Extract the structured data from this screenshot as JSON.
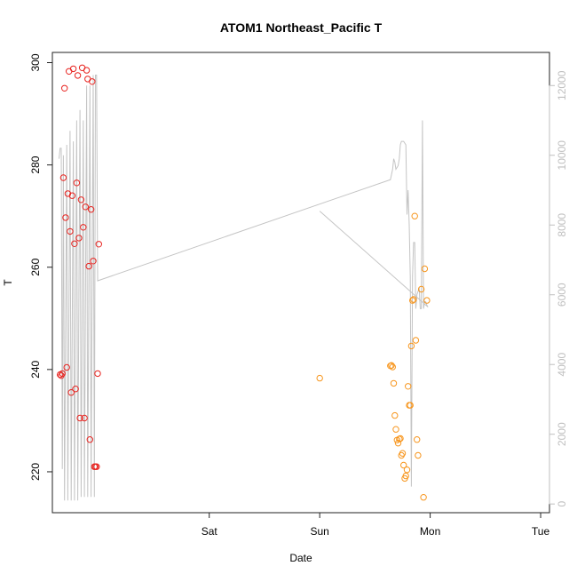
{
  "chart_data": {
    "type": "scatter",
    "title": "ATOM1 Northeast_Pacific T",
    "xlabel": "Date",
    "ylabel": "T",
    "x_ticks": [
      "Sat",
      "Sun",
      "Mon",
      "Tue"
    ],
    "y_ticks": [
      220,
      240,
      260,
      280,
      300
    ],
    "y2_ticks": [
      0,
      2000,
      4000,
      6000,
      8000,
      10000,
      12000
    ],
    "xlim_days": [
      -1.42,
      3.08
    ],
    "ylim": [
      212,
      302
    ],
    "y2lim": [
      -250,
      12950
    ],
    "colors": {
      "series_red": "#e8231f",
      "series_orange": "#f7961e",
      "line": "#c4c4c4",
      "axis2": "#bfbfbf",
      "axis": "#222222"
    },
    "series": [
      {
        "color": "red",
        "points": [
          [
            -1.35,
            239
          ],
          [
            -1.34,
            238.8
          ],
          [
            -1.33,
            239.2
          ],
          [
            -1.32,
            277.5
          ],
          [
            -1.31,
            295
          ],
          [
            -1.3,
            269.7
          ],
          [
            -1.29,
            240.4
          ],
          [
            -1.28,
            274.4
          ],
          [
            -1.27,
            298.3
          ],
          [
            -1.26,
            267
          ],
          [
            -1.25,
            235.5
          ],
          [
            -1.24,
            274
          ],
          [
            -1.23,
            298.8
          ],
          [
            -1.22,
            264.6
          ],
          [
            -1.21,
            236.2
          ],
          [
            -1.2,
            276.5
          ],
          [
            -1.19,
            297.5
          ],
          [
            -1.18,
            265.7
          ],
          [
            -1.17,
            230.5
          ],
          [
            -1.16,
            273.2
          ],
          [
            -1.15,
            299
          ],
          [
            -1.14,
            267.8
          ],
          [
            -1.13,
            230.5
          ],
          [
            -1.12,
            271.8
          ],
          [
            -1.11,
            298.5
          ],
          [
            -1.1,
            296.8
          ],
          [
            -1.09,
            260.2
          ],
          [
            -1.08,
            226.3
          ],
          [
            -1.07,
            271.3
          ],
          [
            -1.06,
            296.3
          ],
          [
            -1.05,
            261.2
          ],
          [
            -1.04,
            221
          ],
          [
            -1.03,
            221
          ],
          [
            -1.02,
            221
          ],
          [
            -1.01,
            239.2
          ],
          [
            -1.0,
            264.5
          ]
        ]
      },
      {
        "color": "orange",
        "points": [
          [
            1.0,
            238.3
          ],
          [
            1.64,
            240.7
          ],
          [
            1.65,
            240.8
          ],
          [
            1.66,
            240.5
          ],
          [
            1.67,
            237.3
          ],
          [
            1.68,
            231
          ],
          [
            1.69,
            228.3
          ],
          [
            1.7,
            226.2
          ],
          [
            1.71,
            225.6
          ],
          [
            1.72,
            226.4
          ],
          [
            1.73,
            226.5
          ],
          [
            1.74,
            223.2
          ],
          [
            1.75,
            223.6
          ],
          [
            1.76,
            221.3
          ],
          [
            1.77,
            218.7
          ],
          [
            1.78,
            219.2
          ],
          [
            1.79,
            220.4
          ],
          [
            1.8,
            236.7
          ],
          [
            1.81,
            233
          ],
          [
            1.82,
            233
          ],
          [
            1.83,
            244.6
          ],
          [
            1.84,
            253.5
          ],
          [
            1.85,
            253.7
          ],
          [
            1.86,
            270
          ],
          [
            1.87,
            245.7
          ],
          [
            1.88,
            226.3
          ],
          [
            1.89,
            223.2
          ],
          [
            1.92,
            255.7
          ],
          [
            1.94,
            215
          ],
          [
            1.95,
            259.7
          ],
          [
            1.97,
            253.5
          ]
        ]
      }
    ],
    "line_series": {
      "axis": "right",
      "points": [
        [
          -1.36,
          9900
        ],
        [
          -1.35,
          10200
        ],
        [
          -1.34,
          10200
        ],
        [
          -1.33,
          1000
        ],
        [
          -1.32,
          10000
        ],
        [
          -1.31,
          100
        ],
        [
          -1.29,
          10300
        ],
        [
          -1.28,
          100
        ],
        [
          -1.26,
          10700
        ],
        [
          -1.25,
          100
        ],
        [
          -1.23,
          10400
        ],
        [
          -1.22,
          100
        ],
        [
          -1.2,
          11000
        ],
        [
          -1.19,
          100
        ],
        [
          -1.17,
          11300
        ],
        [
          -1.16,
          200
        ],
        [
          -1.14,
          11000
        ],
        [
          -1.13,
          200
        ],
        [
          -1.11,
          12000
        ],
        [
          -1.1,
          200
        ],
        [
          -1.08,
          12000
        ],
        [
          -1.07,
          200
        ],
        [
          -1.05,
          12300
        ],
        [
          -1.04,
          200
        ],
        [
          -1.03,
          12300
        ],
        [
          -1.02,
          12300
        ],
        [
          -1.01,
          6400
        ],
        [
          1.64,
          9300
        ],
        [
          1.66,
          9600
        ],
        [
          1.67,
          9900
        ],
        [
          1.68,
          9800
        ],
        [
          1.69,
          9600
        ],
        [
          1.71,
          9700
        ],
        [
          1.72,
          9900
        ],
        [
          1.73,
          10300
        ],
        [
          1.74,
          10400
        ],
        [
          1.75,
          10400
        ],
        [
          1.76,
          10400
        ],
        [
          1.78,
          10300
        ],
        [
          1.79,
          8300
        ],
        [
          1.8,
          9000
        ],
        [
          1.81,
          8000
        ],
        [
          1.82,
          6500
        ],
        [
          1.83,
          500
        ],
        [
          1.84,
          6500
        ],
        [
          1.85,
          7500
        ],
        [
          1.86,
          7500
        ],
        [
          1.87,
          5600
        ],
        [
          1.88,
          6000
        ],
        [
          1.9,
          6200
        ],
        [
          1.91,
          5600
        ],
        [
          1.92,
          5600
        ],
        [
          1.93,
          11000
        ],
        [
          1.94,
          5600
        ],
        [
          1.95,
          5800
        ],
        [
          1.96,
          5800
        ],
        [
          1.97,
          5700
        ],
        [
          1.98,
          5650
        ],
        [
          1.0,
          8400
        ]
      ]
    }
  }
}
